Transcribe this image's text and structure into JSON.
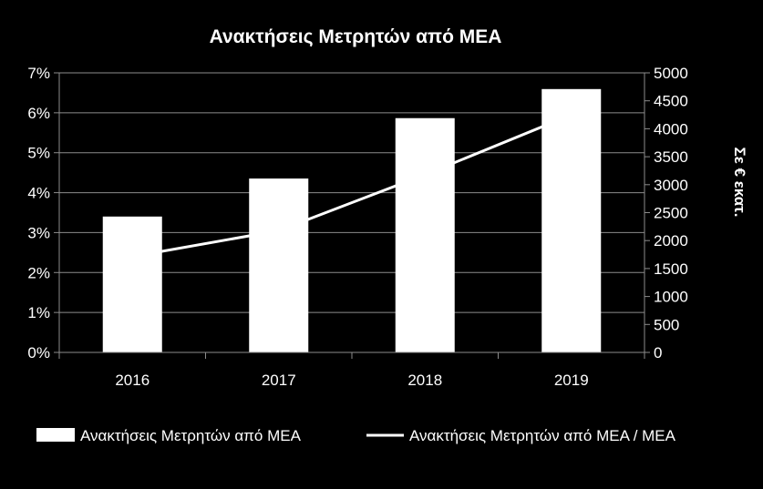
{
  "chart_data": {
    "type": "bar+line",
    "title": "Ανακτήσεις Μετρητών από ΜΕΑ",
    "categories": [
      "2016",
      "2017",
      "2018",
      "2019"
    ],
    "y_left": {
      "ticks": [
        "0%",
        "1%",
        "2%",
        "3%",
        "4%",
        "5%",
        "6%",
        "7%"
      ],
      "range": [
        0,
        7
      ],
      "unit": "%"
    },
    "y_right": {
      "label": "Σε € εκατ.",
      "ticks": [
        "0",
        "500",
        "1000",
        "1500",
        "2000",
        "2500",
        "3000",
        "3500",
        "4000",
        "4500",
        "5000"
      ],
      "range": [
        0,
        5000
      ]
    },
    "series": [
      {
        "name": "Ανακτήσεις Μετρητών από ΜΕΑ",
        "type": "bar",
        "axis": "right",
        "color": "#ffffff",
        "values": [
          2430,
          3110,
          4190,
          4710
        ]
      },
      {
        "name": "Ανακτήσεις Μετρητών από ΜΕΑ / ΜΕΑ",
        "type": "line",
        "axis": "left",
        "color": "#ffffff",
        "values": [
          2.4,
          3.05,
          4.45,
          5.95
        ]
      }
    ],
    "grid": true,
    "legend_position": "bottom"
  }
}
